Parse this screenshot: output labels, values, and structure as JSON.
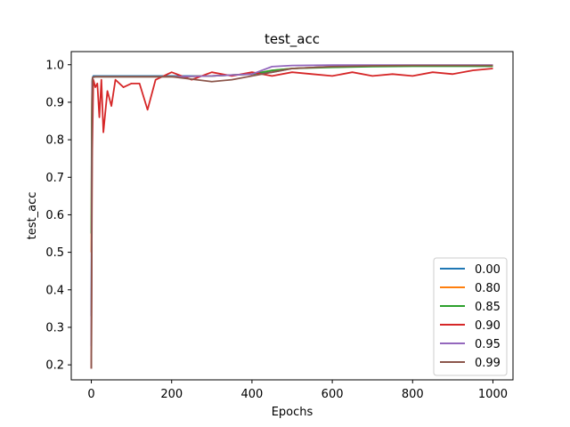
{
  "chart_data": {
    "type": "line",
    "title": "test_acc",
    "xlabel": "Epochs",
    "ylabel": "test_acc",
    "xlim": [
      -50,
      1050
    ],
    "ylim": [
      0.16,
      1.035
    ],
    "xticks": [
      0,
      200,
      400,
      600,
      800,
      1000
    ],
    "yticks": [
      0.2,
      0.3,
      0.4,
      0.5,
      0.6,
      0.7,
      0.8,
      0.9,
      1.0
    ],
    "xtick_labels": [
      "0",
      "200",
      "400",
      "600",
      "800",
      "1000"
    ],
    "ytick_labels": [
      "0.2",
      "0.3",
      "0.4",
      "0.5",
      "0.6",
      "0.7",
      "0.8",
      "0.9",
      "1.0"
    ],
    "grid": false,
    "legend_position": "lower-right",
    "series": [
      {
        "name": "0.00",
        "color": "#1f77b4",
        "x": [
          0,
          1,
          2,
          3,
          5,
          10,
          50,
          100,
          200,
          300,
          400,
          450,
          500,
          600,
          700,
          800,
          900,
          1000
        ],
        "y": [
          0.33,
          0.6,
          0.9,
          0.965,
          0.97,
          0.97,
          0.97,
          0.97,
          0.97,
          0.97,
          0.975,
          0.98,
          0.99,
          0.995,
          0.997,
          0.998,
          0.998,
          0.998
        ]
      },
      {
        "name": "0.80",
        "color": "#ff7f0e",
        "x": [
          0,
          1,
          2,
          3,
          5,
          10,
          50,
          100,
          200,
          300,
          400,
          450,
          500,
          600,
          700,
          800,
          900,
          1000
        ],
        "y": [
          0.5,
          0.8,
          0.95,
          0.965,
          0.967,
          0.968,
          0.968,
          0.968,
          0.968,
          0.97,
          0.975,
          0.985,
          0.99,
          0.995,
          0.996,
          0.997,
          0.997,
          0.997
        ]
      },
      {
        "name": "0.85",
        "color": "#2ca02c",
        "x": [
          0,
          1,
          2,
          3,
          5,
          10,
          50,
          100,
          200,
          300,
          400,
          450,
          500,
          600,
          700,
          800,
          900,
          1000
        ],
        "y": [
          0.55,
          0.85,
          0.95,
          0.965,
          0.967,
          0.968,
          0.968,
          0.968,
          0.968,
          0.97,
          0.975,
          0.985,
          0.99,
          0.993,
          0.995,
          0.996,
          0.996,
          0.996
        ]
      },
      {
        "name": "0.90",
        "color": "#d62728",
        "x": [
          0,
          2,
          5,
          10,
          15,
          20,
          25,
          30,
          40,
          50,
          60,
          80,
          100,
          120,
          140,
          160,
          180,
          200,
          250,
          300,
          350,
          400,
          450,
          500,
          550,
          600,
          650,
          700,
          750,
          800,
          850,
          900,
          950,
          1000
        ],
        "y": [
          0.19,
          0.75,
          0.96,
          0.94,
          0.95,
          0.86,
          0.96,
          0.82,
          0.93,
          0.89,
          0.96,
          0.94,
          0.95,
          0.95,
          0.88,
          0.96,
          0.97,
          0.98,
          0.96,
          0.98,
          0.97,
          0.98,
          0.97,
          0.98,
          0.975,
          0.97,
          0.98,
          0.97,
          0.975,
          0.97,
          0.98,
          0.975,
          0.985,
          0.99
        ]
      },
      {
        "name": "0.95",
        "color": "#9467bd",
        "x": [
          0,
          1,
          2,
          3,
          5,
          10,
          50,
          100,
          200,
          300,
          400,
          450,
          500,
          600,
          700,
          800,
          900,
          1000
        ],
        "y": [
          0.25,
          0.7,
          0.95,
          0.965,
          0.967,
          0.968,
          0.968,
          0.968,
          0.968,
          0.97,
          0.975,
          0.995,
          0.998,
          0.999,
          0.999,
          0.999,
          0.999,
          0.999
        ]
      },
      {
        "name": "0.99",
        "color": "#8c564b",
        "x": [
          0,
          1,
          2,
          3,
          5,
          10,
          50,
          100,
          200,
          300,
          350,
          400,
          450,
          500,
          600,
          700,
          800,
          900,
          1000
        ],
        "y": [
          0.19,
          0.55,
          0.9,
          0.965,
          0.967,
          0.968,
          0.968,
          0.968,
          0.968,
          0.955,
          0.96,
          0.97,
          0.98,
          0.99,
          0.995,
          0.997,
          0.998,
          0.998,
          0.998
        ]
      }
    ]
  }
}
